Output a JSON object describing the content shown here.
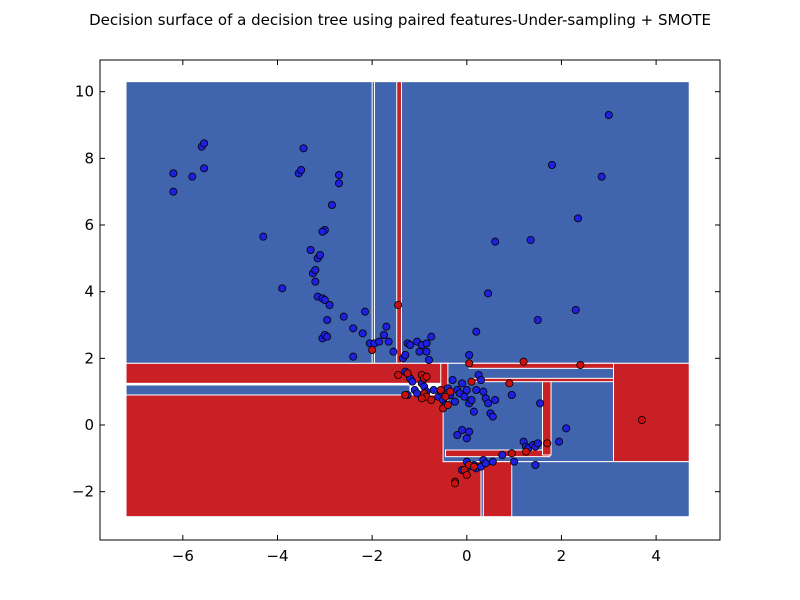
{
  "chart_data": {
    "type": "scatter",
    "title": "Decision surface of a decision tree using paired features-Under-sampling + SMOTE",
    "xlabel": "",
    "ylabel": "",
    "xlim": [
      -7.75,
      5.35
    ],
    "ylim": [
      -3.45,
      10.95
    ],
    "x_ticks": [
      -6,
      -4,
      -2,
      0,
      2,
      4
    ],
    "y_ticks": [
      -2,
      0,
      2,
      4,
      6,
      8,
      10
    ],
    "x_tick_labels": [
      "−6",
      "−4",
      "−2",
      "0",
      "2",
      "4"
    ],
    "y_tick_labels": [
      "−2",
      "0",
      "2",
      "4",
      "6",
      "8",
      "10"
    ],
    "grid": false,
    "legend": "none",
    "colors": {
      "class_0_region": "#4064ad",
      "class_1_region": "#c92026",
      "class_0_point": "#1f1fe0",
      "class_1_point": "#cc1010",
      "region_border": "#ffffff",
      "point_edge": "#000000"
    },
    "decision_regions": [
      {
        "class": 0,
        "x0": -7.2,
        "x1": 4.7,
        "y0": 1.85,
        "y1": 10.3
      },
      {
        "class": 1,
        "x0": -1.48,
        "x1": -1.38,
        "y0": 1.85,
        "y1": 10.3
      },
      {
        "class": 0,
        "x0": -2.0,
        "x1": -1.95,
        "y0": 1.85,
        "y1": 10.3
      },
      {
        "class": 1,
        "x0": -7.2,
        "x1": -0.5,
        "y0": 1.25,
        "y1": 1.85
      },
      {
        "class": 0,
        "x0": -7.2,
        "x1": -1.2,
        "y0": 0.9,
        "y1": 1.2
      },
      {
        "class": 1,
        "x0": -7.2,
        "x1": 0.3,
        "y0": -2.75,
        "y1": 0.9
      },
      {
        "class": 0,
        "x0": -0.5,
        "x1": 3.1,
        "y0": -1.1,
        "y1": 1.85
      },
      {
        "class": 1,
        "x0": 3.1,
        "x1": 4.7,
        "y0": -1.1,
        "y1": 1.85
      },
      {
        "class": 0,
        "x0": 0.3,
        "x1": 4.7,
        "y0": -2.75,
        "y1": -1.1
      },
      {
        "class": 1,
        "x0": 0.35,
        "x1": 0.95,
        "y0": -2.75,
        "y1": -1.1
      },
      {
        "class": 1,
        "x0": -0.45,
        "x1": 1.75,
        "y0": -0.95,
        "y1": -0.75
      },
      {
        "class": 1,
        "x0": 1.6,
        "x1": 1.78,
        "y0": -0.9,
        "y1": 1.35
      },
      {
        "class": 1,
        "x0": -0.55,
        "x1": -0.4,
        "y0": 0.7,
        "y1": 1.85
      },
      {
        "class": 1,
        "x0": 0.05,
        "x1": 3.1,
        "y0": 1.7,
        "y1": 1.85
      },
      {
        "class": 1,
        "x0": 0.1,
        "x1": 3.1,
        "y0": 1.3,
        "y1": 1.4
      }
    ],
    "series": [
      {
        "class": 0,
        "points": [
          [
            -6.2,
            7.0
          ],
          [
            -6.2,
            7.55
          ],
          [
            -5.8,
            7.45
          ],
          [
            -5.6,
            8.35
          ],
          [
            -5.55,
            8.45
          ],
          [
            -5.55,
            7.7
          ],
          [
            -4.3,
            5.65
          ],
          [
            -3.9,
            4.1
          ],
          [
            -3.45,
            8.3
          ],
          [
            -3.55,
            7.55
          ],
          [
            -3.5,
            7.65
          ],
          [
            -3.3,
            5.25
          ],
          [
            -3.25,
            4.55
          ],
          [
            -3.2,
            4.65
          ],
          [
            -3.15,
            5.0
          ],
          [
            -3.1,
            5.1
          ],
          [
            -3.2,
            4.3
          ],
          [
            -3.15,
            3.85
          ],
          [
            -3.05,
            3.8
          ],
          [
            -3.0,
            3.75
          ],
          [
            -2.9,
            3.6
          ],
          [
            -2.95,
            3.15
          ],
          [
            -3.05,
            2.6
          ],
          [
            -3.0,
            2.7
          ],
          [
            -2.95,
            2.65
          ],
          [
            -3.0,
            5.85
          ],
          [
            -3.05,
            5.8
          ],
          [
            -2.85,
            6.6
          ],
          [
            -2.7,
            7.5
          ],
          [
            -2.7,
            7.25
          ],
          [
            -2.6,
            3.25
          ],
          [
            -2.4,
            2.9
          ],
          [
            -2.4,
            2.05
          ],
          [
            -2.2,
            2.75
          ],
          [
            -2.15,
            3.4
          ],
          [
            -2.05,
            2.45
          ],
          [
            -1.95,
            2.45
          ],
          [
            -1.85,
            2.5
          ],
          [
            -1.75,
            2.7
          ],
          [
            -1.7,
            2.95
          ],
          [
            -1.65,
            2.5
          ],
          [
            -1.55,
            2.2
          ],
          [
            -1.35,
            2.0
          ],
          [
            -1.3,
            2.1
          ],
          [
            -1.25,
            2.45
          ],
          [
            -1.2,
            2.4
          ],
          [
            -1.05,
            2.5
          ],
          [
            -1.0,
            2.2
          ],
          [
            -0.95,
            2.4
          ],
          [
            -0.85,
            2.45
          ],
          [
            -0.85,
            2.2
          ],
          [
            -0.8,
            1.95
          ],
          [
            -0.75,
            2.65
          ],
          [
            -1.3,
            1.6
          ],
          [
            -1.2,
            1.4
          ],
          [
            -1.15,
            1.3
          ],
          [
            -1.1,
            1.05
          ],
          [
            -1.05,
            0.95
          ],
          [
            -1.25,
            0.9
          ],
          [
            -0.95,
            1.25
          ],
          [
            -0.9,
            1.15
          ],
          [
            -0.85,
            1.0
          ],
          [
            -0.7,
            1.05
          ],
          [
            -0.6,
            0.85
          ],
          [
            -0.55,
            1.0
          ],
          [
            -0.5,
            0.75
          ],
          [
            -0.45,
            0.6
          ],
          [
            -0.4,
            1.1
          ],
          [
            -0.35,
            0.9
          ],
          [
            -0.3,
            1.35
          ],
          [
            -0.25,
            0.7
          ],
          [
            -0.2,
            1.05
          ],
          [
            -0.15,
            0.95
          ],
          [
            -0.1,
            1.25
          ],
          [
            -0.05,
            0.85
          ],
          [
            0.0,
            1.05
          ],
          [
            0.05,
            0.65
          ],
          [
            0.1,
            0.75
          ],
          [
            0.15,
            0.4
          ],
          [
            0.2,
            1.05
          ],
          [
            0.25,
            1.5
          ],
          [
            0.3,
            1.35
          ],
          [
            0.35,
            1.0
          ],
          [
            0.4,
            0.8
          ],
          [
            0.45,
            0.65
          ],
          [
            0.5,
            0.35
          ],
          [
            0.55,
            0.25
          ],
          [
            0.6,
            0.75
          ],
          [
            0.05,
            2.1
          ],
          [
            0.2,
            2.8
          ],
          [
            0.45,
            3.95
          ],
          [
            0.6,
            5.5
          ],
          [
            1.35,
            5.55
          ],
          [
            1.5,
            3.15
          ],
          [
            1.55,
            0.65
          ],
          [
            1.8,
            7.8
          ],
          [
            2.1,
            -0.1
          ],
          [
            2.3,
            3.45
          ],
          [
            2.35,
            6.2
          ],
          [
            2.85,
            7.45
          ],
          [
            3.0,
            9.3
          ],
          [
            -0.1,
            -1.35
          ],
          [
            0.0,
            -1.1
          ],
          [
            0.05,
            -1.25
          ],
          [
            0.2,
            -1.3
          ],
          [
            0.3,
            -1.25
          ],
          [
            0.35,
            -1.05
          ],
          [
            0.4,
            -1.15
          ],
          [
            0.55,
            -1.1
          ],
          [
            0.75,
            -0.9
          ],
          [
            1.0,
            -1.1
          ],
          [
            1.2,
            -0.5
          ],
          [
            1.25,
            -0.65
          ],
          [
            1.3,
            -0.7
          ],
          [
            1.4,
            -0.6
          ],
          [
            1.45,
            -0.65
          ],
          [
            1.5,
            -0.55
          ],
          [
            1.45,
            -1.2
          ],
          [
            1.95,
            -0.5
          ],
          [
            -0.2,
            -0.3
          ],
          [
            -0.1,
            -0.15
          ],
          [
            0.0,
            -0.4
          ],
          [
            0.05,
            -0.2
          ],
          [
            0.95,
            0.9
          ],
          [
            0.15,
            -1.2
          ]
        ]
      },
      {
        "class": 1,
        "points": [
          [
            -2.0,
            2.25
          ],
          [
            -1.45,
            3.6
          ],
          [
            -1.45,
            1.5
          ],
          [
            -1.3,
            0.9
          ],
          [
            -1.25,
            1.55
          ],
          [
            -0.95,
            1.5
          ],
          [
            -0.9,
            1.4
          ],
          [
            -0.85,
            1.45
          ],
          [
            -0.9,
            0.95
          ],
          [
            -0.85,
            0.85
          ],
          [
            -0.95,
            0.8
          ],
          [
            -0.75,
            0.75
          ],
          [
            -0.5,
            0.5
          ],
          [
            -0.45,
            0.85
          ],
          [
            -0.4,
            0.6
          ],
          [
            -0.35,
            1.0
          ],
          [
            -0.55,
            1.05
          ],
          [
            0.05,
            1.85
          ],
          [
            0.1,
            1.3
          ],
          [
            0.9,
            1.25
          ],
          [
            1.2,
            1.9
          ],
          [
            2.4,
            1.8
          ],
          [
            3.7,
            0.15
          ],
          [
            -0.25,
            -1.7
          ],
          [
            -0.05,
            -1.35
          ],
          [
            0.0,
            -1.5
          ],
          [
            0.05,
            -1.2
          ],
          [
            0.15,
            -1.25
          ],
          [
            0.95,
            -0.85
          ],
          [
            1.25,
            -0.8
          ],
          [
            1.7,
            -0.55
          ],
          [
            -0.25,
            -1.75
          ]
        ]
      }
    ]
  }
}
